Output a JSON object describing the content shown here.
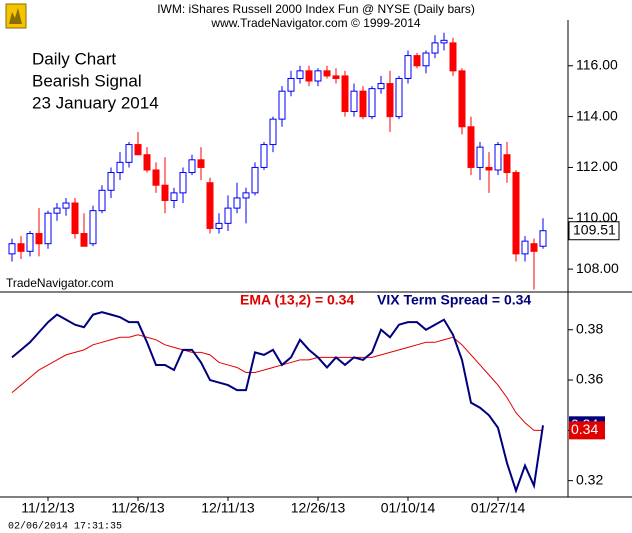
{
  "chart_data": [
    {
      "type": "candlestick",
      "title": "IWM:  iShares Russell 2000 Index Fun @ NYSE  (Daily bars)",
      "subtitle": "www.TradeNavigator.com © 1999-2014",
      "annotations": [
        "Daily Chart",
        "Bearish Signal",
        "23 January 2014"
      ],
      "up_color": "#0000ff",
      "down_color": "#ff0000",
      "open": [
        108.6,
        109.0,
        108.7,
        109.4,
        109.0,
        110.2,
        110.4,
        110.6,
        109.4,
        109.0,
        110.3,
        111.1,
        111.8,
        112.2,
        112.9,
        112.5,
        111.9,
        111.3,
        110.7,
        111.0,
        111.8,
        112.3,
        111.4,
        109.6,
        109.8,
        110.4,
        110.8,
        111.0,
        112.0,
        112.9,
        113.9,
        115.0,
        115.5,
        115.8,
        115.4,
        115.8,
        115.6,
        115.6,
        114.2,
        115.0,
        114.0,
        115.1,
        115.3,
        114.0,
        115.5,
        116.4,
        116.0,
        116.5,
        116.9,
        116.9,
        115.8,
        113.6,
        112.0,
        112.0,
        111.9,
        112.5,
        111.8,
        108.6,
        109.0,
        108.9
      ],
      "high": [
        109.2,
        109.3,
        109.5,
        110.4,
        110.3,
        110.6,
        110.8,
        110.8,
        110.2,
        110.5,
        111.3,
        112.0,
        112.6,
        113.0,
        113.4,
        112.8,
        112.2,
        112.4,
        111.2,
        112.0,
        112.5,
        112.8,
        111.6,
        110.2,
        110.9,
        111.4,
        111.2,
        112.2,
        113.0,
        114.0,
        115.2,
        115.8,
        116.0,
        116.0,
        115.9,
        116.0,
        115.9,
        115.8,
        115.3,
        115.2,
        115.2,
        115.6,
        115.8,
        115.6,
        116.6,
        116.5,
        116.6,
        117.2,
        117.3,
        117.1,
        115.9,
        114.0,
        113.0,
        112.6,
        113.0,
        113.0,
        111.9,
        109.3,
        109.2,
        110.0
      ],
      "low": [
        108.3,
        108.4,
        108.5,
        108.5,
        108.8,
        109.9,
        110.1,
        109.2,
        108.9,
        108.9,
        110.2,
        110.8,
        111.5,
        112.0,
        112.5,
        111.8,
        111.0,
        110.2,
        110.4,
        110.6,
        111.7,
        111.5,
        109.4,
        109.4,
        109.5,
        110.2,
        109.8,
        110.9,
        111.9,
        112.6,
        113.6,
        114.8,
        115.3,
        115.2,
        115.2,
        115.5,
        115.3,
        114.0,
        114.0,
        113.9,
        113.9,
        114.9,
        113.4,
        113.9,
        115.3,
        115.9,
        115.7,
        116.3,
        116.6,
        115.6,
        113.3,
        111.7,
        111.5,
        111.0,
        111.7,
        111.4,
        108.3,
        108.3,
        107.2,
        108.8
      ],
      "close": [
        109.0,
        108.7,
        109.4,
        109.0,
        110.2,
        110.4,
        110.6,
        109.4,
        108.9,
        110.3,
        111.1,
        111.8,
        112.2,
        112.9,
        112.5,
        111.9,
        111.3,
        110.7,
        111.0,
        111.8,
        112.3,
        112.0,
        109.6,
        109.8,
        110.4,
        110.8,
        111.0,
        112.0,
        112.9,
        113.9,
        115.0,
        115.5,
        115.8,
        115.4,
        115.8,
        115.6,
        115.5,
        114.2,
        115.0,
        114.0,
        115.1,
        115.3,
        114.0,
        115.5,
        116.4,
        116.0,
        116.5,
        116.9,
        117.0,
        115.8,
        113.6,
        112.0,
        112.8,
        111.9,
        112.9,
        111.8,
        108.6,
        109.1,
        108.7,
        109.51
      ],
      "ylim": [
        107.1,
        117.8
      ],
      "yticks": [
        {
          "value": 108,
          "label": "108.00"
        },
        {
          "value": 110,
          "label": "110.00"
        },
        {
          "value": 112,
          "label": "112.00"
        },
        {
          "value": 114,
          "label": "114.00"
        },
        {
          "value": 116,
          "label": "116.00"
        }
      ]
    },
    {
      "type": "line",
      "categories": [
        null,
        null,
        null,
        null,
        "11/12/13",
        null,
        null,
        null,
        null,
        null,
        null,
        null,
        null,
        null,
        "11/26/13",
        null,
        null,
        null,
        null,
        null,
        null,
        null,
        null,
        null,
        "12/11/13",
        null,
        null,
        null,
        null,
        null,
        null,
        null,
        null,
        null,
        "12/26/13",
        null,
        null,
        null,
        null,
        null,
        null,
        null,
        null,
        null,
        "01/10/14",
        null,
        null,
        null,
        null,
        null,
        null,
        null,
        null,
        null,
        "01/27/14",
        null,
        null,
        null,
        null,
        null
      ],
      "series": [
        {
          "name": "EMA (13,2) = 0.34",
          "color": "#e00000",
          "values": [
            0.355,
            0.358,
            0.361,
            0.364,
            0.366,
            0.368,
            0.37,
            0.371,
            0.372,
            0.374,
            0.375,
            0.376,
            0.377,
            0.377,
            0.378,
            0.377,
            0.376,
            0.374,
            0.373,
            0.372,
            0.371,
            0.371,
            0.37,
            0.367,
            0.366,
            0.365,
            0.363,
            0.363,
            0.364,
            0.365,
            0.366,
            0.367,
            0.368,
            0.368,
            0.369,
            0.369,
            0.369,
            0.369,
            0.369,
            0.369,
            0.369,
            0.37,
            0.371,
            0.372,
            0.373,
            0.374,
            0.375,
            0.375,
            0.376,
            0.377,
            0.374,
            0.37,
            0.366,
            0.362,
            0.358,
            0.353,
            0.347,
            0.343,
            0.34,
            0.34
          ],
          "last_label": "0.34"
        },
        {
          "name": "VIX Term Spread = 0.34",
          "color": "#00007f",
          "values": [
            0.369,
            0.372,
            0.375,
            0.379,
            0.383,
            0.386,
            0.384,
            0.382,
            0.381,
            0.386,
            0.387,
            0.386,
            0.385,
            0.383,
            0.383,
            0.375,
            0.366,
            0.366,
            0.364,
            0.372,
            0.372,
            0.367,
            0.36,
            0.359,
            0.358,
            0.356,
            0.356,
            0.371,
            0.37,
            0.372,
            0.366,
            0.369,
            0.376,
            0.372,
            0.369,
            0.365,
            0.369,
            0.366,
            0.369,
            0.368,
            0.371,
            0.38,
            0.377,
            0.382,
            0.383,
            0.383,
            0.38,
            0.382,
            0.384,
            0.378,
            0.368,
            0.351,
            0.349,
            0.346,
            0.341,
            0.327,
            0.316,
            0.326,
            0.318,
            0.342
          ],
          "last_label": "0.34"
        }
      ],
      "ylim": [
        0.3135,
        0.395
      ],
      "yticks": [
        0.32,
        0.34,
        0.36,
        0.38
      ]
    }
  ],
  "watermark": "TradeNavigator.com",
  "timestamp": "02/06/2014 17:31:35"
}
